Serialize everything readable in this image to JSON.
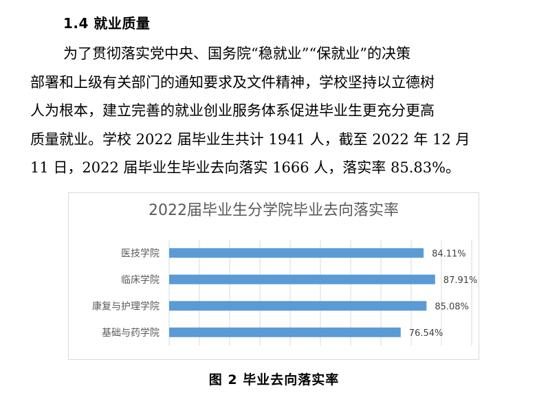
{
  "section": {
    "heading": "1.4 就业质量"
  },
  "paragraph": {
    "lines": [
      "为了贯彻落实党中央、国务院“稳就业”“保就业”的决策",
      "部署和上级有关部门的通知要求及文件精神，学校坚持以立德树",
      "人为根本，建立完善的就业创业服务体系促进毕业生更充分更高",
      "质量就业。学校 2022 届毕业生共计 1941 人，截至 2022 年 12 月",
      "11 日，2022 届毕业生毕业去向落实 1666 人，落实率 85.83%。"
    ]
  },
  "chart_data": {
    "type": "bar",
    "orientation": "horizontal",
    "title": "2022届毕业生分学院毕业去向落实率",
    "categories": [
      "医技学院",
      "临床学院",
      "康复与护理学院",
      "基础与药学院"
    ],
    "values": [
      84.11,
      87.91,
      85.08,
      76.54
    ],
    "value_labels": [
      "84.11%",
      "87.91%",
      "85.08%",
      "76.54%"
    ],
    "xlim": [
      0,
      100
    ],
    "grid": true,
    "legend": "none",
    "bar_color": "#5b9bd5"
  },
  "figure": {
    "caption": "图 2   毕业去向落实率"
  }
}
